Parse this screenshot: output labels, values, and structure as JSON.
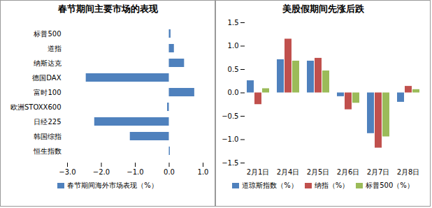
{
  "chart_data": [
    {
      "type": "bar",
      "title": "春节期间主要市场的表现",
      "orientation": "horizontal",
      "categories": [
        "标普500",
        "道指",
        "纳斯达克",
        "德国DAX",
        "富时100",
        "欧洲STOXX600",
        "日经225",
        "韩国综指",
        "恒生指数"
      ],
      "series": [
        {
          "name": "春节期间海外市场表现（%）",
          "color": "#4f81bd",
          "values": [
            0.05,
            0.15,
            0.45,
            -2.45,
            0.75,
            -0.05,
            -2.2,
            -1.15,
            0.03
          ]
        }
      ],
      "xlim": [
        -3,
        1
      ],
      "xticks": [
        -3,
        -2,
        -1,
        0,
        1
      ],
      "grid": false,
      "legend": "bottom"
    },
    {
      "type": "bar",
      "title": "美股假期间先涨后跌",
      "categories": [
        "2月1日",
        "2月4日",
        "2月5日",
        "2月6日",
        "2月7日",
        "2月8日"
      ],
      "series": [
        {
          "name": "道琼斯指数（%）",
          "color": "#4f81bd",
          "values": [
            0.26,
            0.71,
            0.68,
            -0.08,
            -0.87,
            -0.2
          ]
        },
        {
          "name": "纳指（%）",
          "color": "#c0504d",
          "values": [
            -0.25,
            1.15,
            0.74,
            -0.36,
            -1.18,
            0.14
          ]
        },
        {
          "name": "标普500（%）",
          "color": "#9bbb59",
          "values": [
            0.09,
            0.68,
            0.47,
            -0.22,
            -0.94,
            0.07
          ]
        }
      ],
      "ylim": [
        -1.5,
        1.5
      ],
      "yticks": [
        -1.5,
        -1,
        -0.5,
        0,
        0.5,
        1,
        1.5
      ],
      "grid": false,
      "legend": "bottom"
    }
  ]
}
